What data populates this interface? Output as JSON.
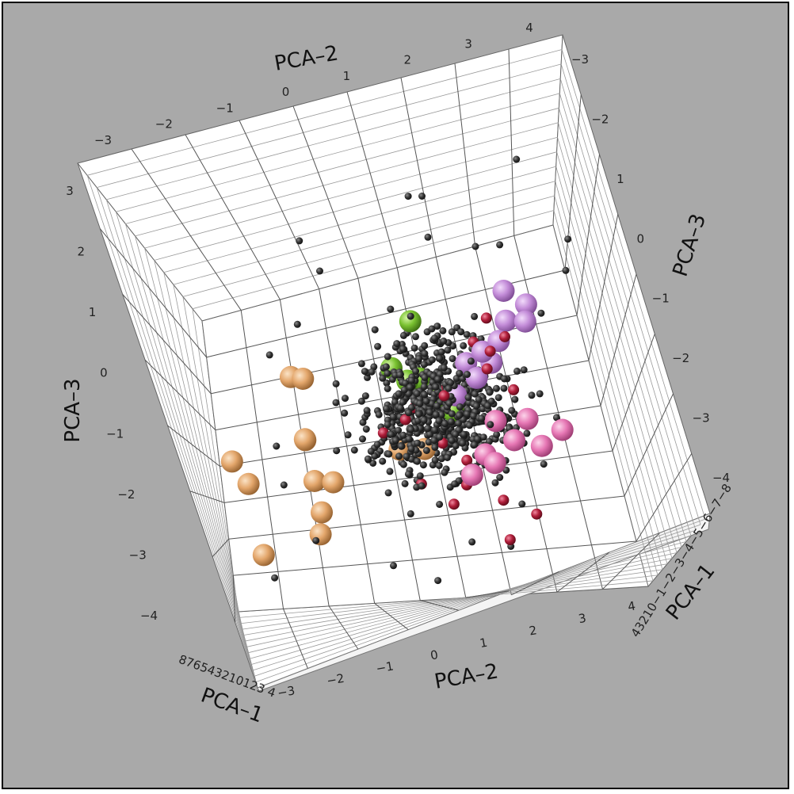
{
  "chart_data": {
    "type": "scatter",
    "projection": "3d",
    "title": "",
    "axes": {
      "x": {
        "label": "PCA–1",
        "range": [
          -8,
          4
        ]
      },
      "y": {
        "label": "PCA–2",
        "range": [
          -3,
          4
        ],
        "ticks": [
          "−3",
          "−2",
          "−1",
          "0",
          "1",
          "2",
          "3",
          "4"
        ]
      },
      "z": {
        "label": "PCA–3",
        "range": [
          -4,
          3
        ],
        "ticks_left": [
          "3",
          "2",
          "1",
          "0",
          "−1",
          "−2",
          "−3",
          "−4"
        ],
        "ticks_right": [
          "−3",
          "−2",
          "1",
          "0",
          "−1",
          "−2",
          "−3",
          "−4"
        ]
      },
      "pca1_ticks_left": "876543210123 4",
      "pca1_ticks_right": "43210−1−2−3−4−5−6−7−8"
    },
    "grid": true,
    "legend": "none",
    "background_color": "#a9a9a9",
    "box_color": "#ffffff",
    "series": [
      {
        "color": "#3a3a3a",
        "marker": "small-sphere",
        "count_approx": 700,
        "points": [
          [
            -1.2,
            -0.6,
            2.9
          ],
          [
            -0.1,
            1.4,
            3.0
          ],
          [
            2.4,
            1.6,
            2.6
          ],
          [
            0.8,
            3.3,
            3.0
          ],
          [
            3.5,
            1.5,
            1.8
          ],
          [
            -2.1,
            -0.4,
            2.4
          ],
          [
            -2.6,
            -1.0,
            1.6
          ],
          [
            -1.1,
            2.3,
            2.0
          ],
          [
            -0.9,
            2.7,
            1.9
          ],
          [
            0.0,
            3.8,
            1.6
          ],
          [
            2.8,
            3.5,
            0.8
          ],
          [
            -3.0,
            -1.6,
            1.2
          ],
          [
            1.2,
            1.2,
            0.4
          ],
          [
            -0.5,
            -1.8,
            -1.4
          ],
          [
            -1.6,
            -1.5,
            -2.5
          ],
          [
            1.4,
            -0.4,
            -3.2
          ],
          [
            2.1,
            0.9,
            -3.1
          ],
          [
            2.6,
            0.2,
            -3.6
          ],
          [
            1.5,
            1.5,
            -3.3
          ],
          [
            0.3,
            -2.3,
            -3.0
          ],
          [
            3.0,
            2.3,
            -0.6
          ],
          [
            1.0,
            3.0,
            0.4
          ],
          [
            0.4,
            2.5,
            -0.4
          ],
          [
            -2.2,
            -1.8,
            -0.6
          ]
        ],
        "note": "dense central cloud"
      },
      {
        "color": "#b01e3a",
        "marker": "sphere",
        "points": [
          [
            1.0,
            1.8,
            0.2
          ],
          [
            1.4,
            2.1,
            0.5
          ],
          [
            1.7,
            2.3,
            0.1
          ],
          [
            0.6,
            1.2,
            -0.4
          ],
          [
            0.3,
            0.6,
            -0.6
          ],
          [
            0.2,
            0.9,
            -1.3
          ],
          [
            0.7,
            1.2,
            -1.7
          ],
          [
            -0.1,
            0.4,
            -1.9
          ],
          [
            0.5,
            1.1,
            -2.1
          ],
          [
            0.1,
            0.0,
            -0.9
          ],
          [
            2.0,
            2.0,
            -0.1
          ],
          [
            1.9,
            2.2,
            -0.8
          ],
          [
            1.5,
            1.1,
            -0.6
          ],
          [
            0.8,
            0.4,
            -0.8
          ],
          [
            1.1,
            1.9,
            -0.3
          ],
          [
            2.0,
            1.5,
            -3.2
          ],
          [
            2.5,
            2.0,
            -2.9
          ],
          [
            0.9,
            1.6,
            -2.5
          ],
          [
            1.3,
            0.8,
            -2.4
          ]
        ]
      },
      {
        "color": "#7ac231",
        "marker": "large-sphere",
        "points": [
          [
            -0.1,
            0.9,
            0.9
          ],
          [
            -0.3,
            0.4,
            0.2
          ],
          [
            -0.1,
            0.8,
            -0.1
          ],
          [
            0.1,
            1.1,
            -0.5
          ],
          [
            0.3,
            1.2,
            -0.8
          ],
          [
            0.0,
            0.6,
            -0.1
          ]
        ]
      },
      {
        "color": "#c38cd8",
        "marker": "large-sphere",
        "points": [
          [
            1.1,
            2.5,
            0.9
          ],
          [
            1.0,
            2.8,
            0.6
          ],
          [
            1.2,
            2.4,
            0.4
          ],
          [
            1.2,
            2.2,
            0.1
          ],
          [
            0.9,
            2.0,
            -0.2
          ],
          [
            1.0,
            1.7,
            -0.4
          ],
          [
            0.9,
            1.3,
            -0.6
          ],
          [
            1.1,
            1.9,
            0.0
          ],
          [
            1.3,
            2.7,
            0.3
          ],
          [
            0.8,
            1.6,
            -0.1
          ]
        ]
      },
      {
        "color": "#e677b4",
        "marker": "large-sphere",
        "points": [
          [
            1.4,
            1.8,
            -1.2
          ],
          [
            1.6,
            2.3,
            -1.3
          ],
          [
            1.7,
            2.0,
            -1.6
          ],
          [
            1.8,
            1.6,
            -1.9
          ],
          [
            1.6,
            1.2,
            -2.0
          ],
          [
            1.8,
            2.4,
            -1.8
          ],
          [
            1.5,
            2.8,
            -1.6
          ],
          [
            1.3,
            1.5,
            -1.7
          ]
        ]
      },
      {
        "color": "#e3a66b",
        "marker": "large-sphere",
        "points": [
          [
            -2.0,
            -1.3,
            0.6
          ],
          [
            -1.8,
            -1.1,
            0.5
          ],
          [
            -2.2,
            -1.3,
            -0.6
          ],
          [
            -1.9,
            -1.3,
            -0.6
          ],
          [
            -2.6,
            -2.6,
            -0.7
          ],
          [
            -2.3,
            -2.4,
            -1.2
          ],
          [
            -1.9,
            -1.3,
            -1.4
          ],
          [
            -1.6,
            -1.0,
            -1.5
          ],
          [
            -1.9,
            -1.3,
            -2.0
          ],
          [
            -1.9,
            -1.4,
            -2.4
          ],
          [
            -2.3,
            -2.4,
            -2.6
          ],
          [
            -0.4,
            0.6,
            -1.3
          ],
          [
            -0.7,
            0.2,
            -1.2
          ]
        ]
      }
    ]
  }
}
